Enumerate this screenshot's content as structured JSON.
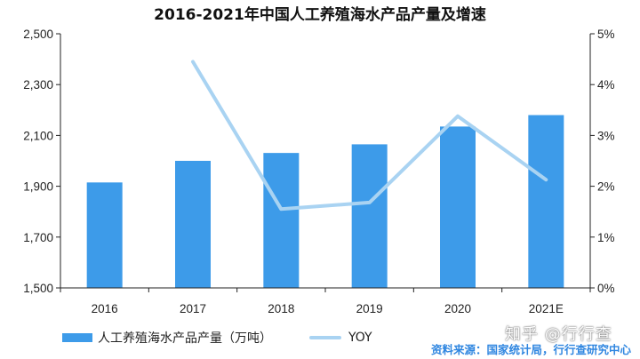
{
  "chart_data": {
    "type": "bar",
    "title": "2016-2021年中国人工养殖海水产品产量及增速",
    "categories": [
      "2016",
      "2017",
      "2018",
      "2019",
      "2020",
      "2021E"
    ],
    "series": [
      {
        "name": "人工养殖海水产品产量（万吨）",
        "type": "bar",
        "axis": "left",
        "values": [
          1915,
          2000,
          2031,
          2065,
          2135,
          2180
        ]
      },
      {
        "name": "YOY",
        "type": "line",
        "axis": "right",
        "values": [
          null,
          4.45,
          1.55,
          1.68,
          3.38,
          2.13
        ]
      }
    ],
    "y_left": {
      "min": 1500,
      "max": 2500,
      "ticks": [
        "1,500",
        "1,700",
        "1,900",
        "2,100",
        "2,300",
        "2,500"
      ]
    },
    "y_right": {
      "min": 0,
      "max": 5,
      "unit": "%",
      "ticks": [
        "0%",
        "1%",
        "2%",
        "3%",
        "4%",
        "5%"
      ]
    },
    "grid": false,
    "legend_position": "bottom-left"
  },
  "colors": {
    "bar": "#3d9be9",
    "line": "#a9d3f2",
    "source": "#2f86e0",
    "axis": "#222222"
  },
  "source_text": "资料来源：国家统计局，行行查研究中心",
  "watermark": "知乎 @行行查"
}
